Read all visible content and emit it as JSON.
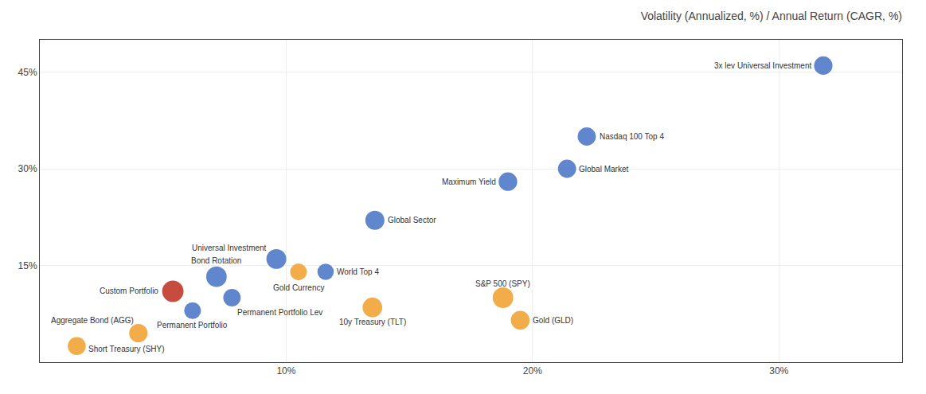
{
  "chart_data": {
    "type": "scatter",
    "title": "Volatility (Annualized, %) / Annual Return (CAGR, %)",
    "series": [
      {
        "color": "#4472C4",
        "labels": [
          "Bond Rotation",
          "Permanent Portfolio",
          "Permanent Portfolio Lev",
          "World Top 4",
          "Global Sector",
          "Global Market",
          "Maximum Yield",
          "Universal Investment",
          "3x lev Universal Investment",
          "Nasdaq 100 Top 4"
        ],
        "x": [
          7.17,
          6.2,
          7.8,
          11.6,
          13.6,
          21.4,
          19.0,
          9.6,
          31.8,
          22.2
        ],
        "values": [
          13.25,
          8.0,
          10.0,
          14.0,
          22.0,
          30.0,
          28.0,
          16.0,
          46.0,
          35.0
        ],
        "sizes": [
          600,
          400,
          430,
          380,
          520,
          470,
          490,
          560,
          480,
          470
        ]
      },
      {
        "color": "#F0A030",
        "labels": [
          "S&P 500 (SPY)",
          "10y Treasury (TLT)",
          "Gold (GLD)",
          "Aggregate Bond (AGG)",
          "Short Treasury (SHY)",
          "Gold Currency"
        ],
        "x": [
          18.8,
          13.5,
          19.5,
          4.0,
          1.5,
          10.5
        ],
        "values": [
          10.0,
          8.5,
          6.5,
          4.5,
          2.5,
          14.0
        ],
        "sizes": [
          600,
          550,
          500,
          480,
          460,
          400
        ]
      },
      {
        "color": "#C0392B",
        "labels": [
          "Custom Portfolio"
        ],
        "x": [
          5.4
        ],
        "values": [
          11.0
        ],
        "sizes": [
          650
        ]
      }
    ],
    "xlim": [
      0,
      35
    ],
    "ylim": [
      0,
      50
    ],
    "xticks": [
      {
        "value": 10,
        "label": "10%"
      },
      {
        "value": 20,
        "label": "20%"
      },
      {
        "value": 30,
        "label": "30%"
      }
    ],
    "yticks": [
      {
        "value": 15,
        "label": "15%"
      },
      {
        "value": 30,
        "label": "30%"
      },
      {
        "value": 45,
        "label": "45%"
      }
    ],
    "grid": true
  }
}
